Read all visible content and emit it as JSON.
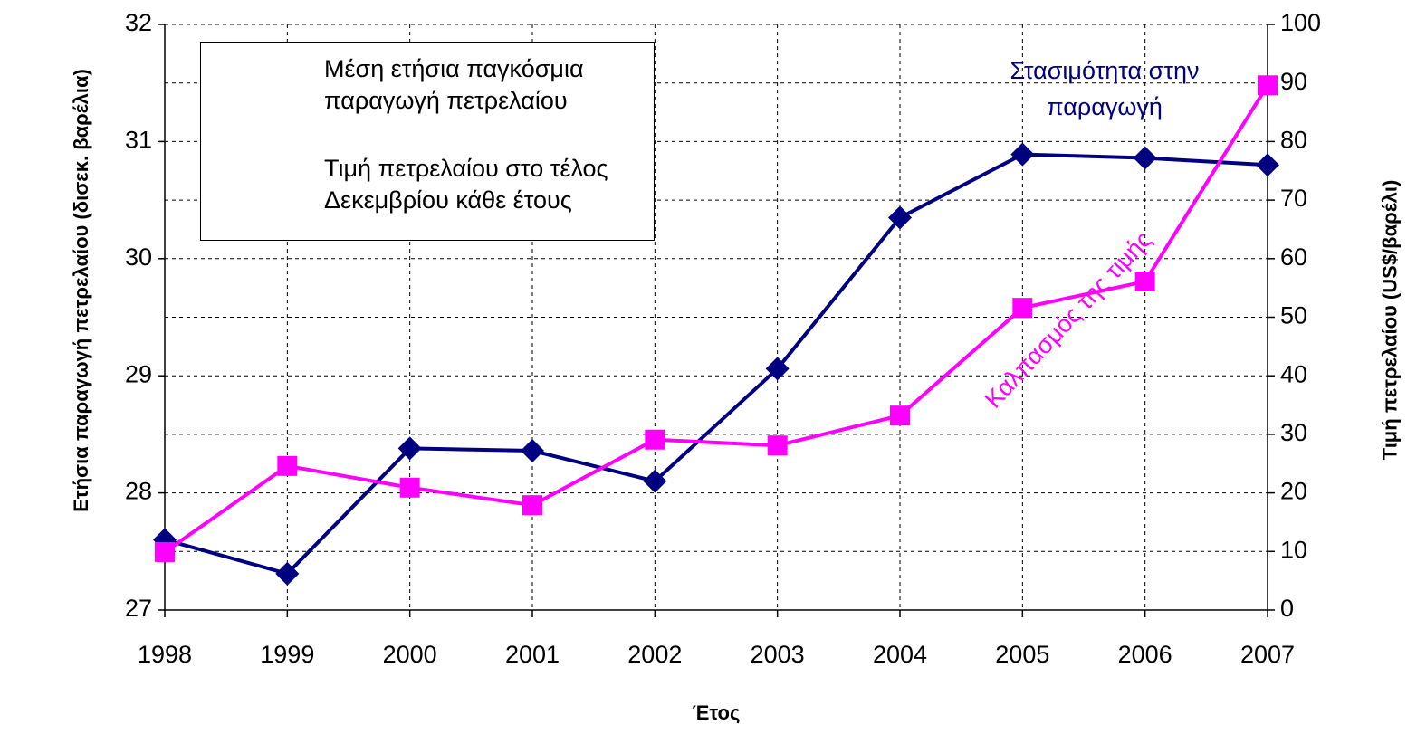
{
  "chart_data": {
    "type": "line",
    "categories": [
      "1998",
      "1999",
      "2000",
      "2001",
      "2002",
      "2003",
      "2004",
      "2005",
      "2006",
      "2007"
    ],
    "series": [
      {
        "name": "Μέση ετήσια παγκόσμια παραγωγή πετρελαίου",
        "color": "#000080",
        "marker": "diamond",
        "values": [
          27.6,
          27.31,
          28.38,
          28.36,
          28.1,
          29.06,
          30.35,
          30.89,
          30.86,
          30.8
        ]
      },
      {
        "name": "Τιμή πετρελαίου στο τέλος Δεκεμβρίου κάθε έτους",
        "color": "#ff00ff",
        "marker": "square",
        "axis": "y2",
        "values": [
          9.9,
          24.6,
          20.9,
          17.9,
          29.1,
          28.1,
          33.2,
          51.6,
          56.1,
          89.6
        ]
      }
    ],
    "ylim": [
      27,
      32
    ],
    "yticks": [
      27,
      28,
      29,
      30,
      31,
      32
    ],
    "y2lim": [
      0,
      100
    ],
    "y2ticks": [
      0,
      10,
      20,
      30,
      40,
      50,
      60,
      70,
      80,
      90,
      100
    ],
    "xlabel": "Έτος",
    "ylabel": "Ετήσια παραγωγή πετρελαίου (δισεκ. βαρέλια)",
    "y2label": "Τιμή πετρελαίου (US$/βαρέλι)",
    "annotations": [
      {
        "text": "Στασιμότητα στην παραγωγή",
        "color": "#000080"
      },
      {
        "text": "Καλπασμός της τιμής",
        "color": "#ff00ff"
      }
    ],
    "grid": true,
    "legend": "upper left"
  }
}
